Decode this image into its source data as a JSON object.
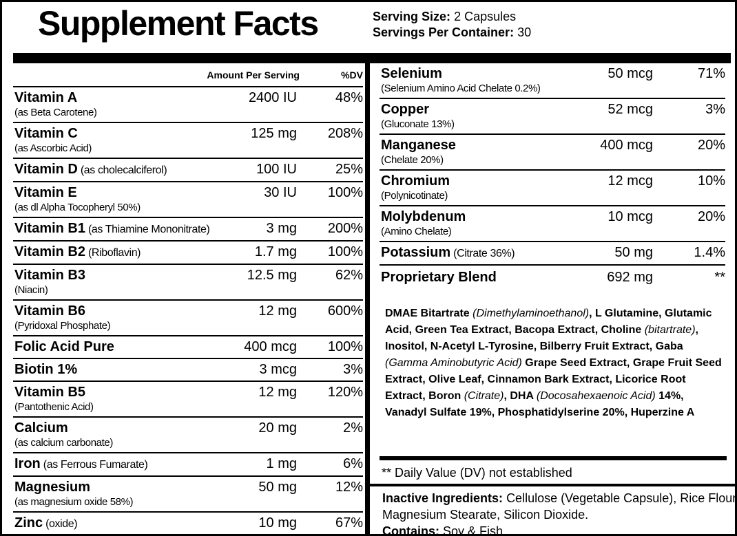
{
  "header": {
    "title": "Supplement Facts",
    "serving_size_label": "Serving Size:",
    "serving_size": "2 Capsules",
    "servings_label": "Servings Per Container:",
    "servings": "30"
  },
  "left_table": {
    "amount_header": "Amount Per Serving",
    "dv_header": "%DV",
    "rows": [
      {
        "name": "Vitamin A",
        "note": "(as Beta Carotene)",
        "amount": "2400 IU",
        "dv": "48%"
      },
      {
        "name": "Vitamin C",
        "note": "(as Ascorbic Acid)",
        "amount": "125 mg",
        "dv": "208%"
      },
      {
        "name": "Vitamin D",
        "inline_note": "(as cholecalciferol)",
        "amount": "100 IU",
        "dv": "25%"
      },
      {
        "name": "Vitamin E",
        "note": "(as dl Alpha Tocopheryl 50%)",
        "amount": "30 IU",
        "dv": "100%"
      },
      {
        "name": "Vitamin B1",
        "inline_note": "(as Thiamine Mononitrate)",
        "amount": "3 mg",
        "dv": "200%"
      },
      {
        "name": "Vitamin B2",
        "inline_note": "(Riboflavin)",
        "amount": "1.7 mg",
        "dv": "100%"
      },
      {
        "name": "Vitamin B3",
        "note": "(Niacin)",
        "amount": "12.5 mg",
        "dv": "62%"
      },
      {
        "name": "Vitamin B6",
        "note": "(Pyridoxal Phosphate)",
        "amount": "12 mg",
        "dv": "600%"
      },
      {
        "name": "Folic Acid Pure",
        "amount": "400 mcg",
        "dv": "100%"
      },
      {
        "name": "Biotin 1%",
        "amount": "3 mcg",
        "dv": "3%"
      },
      {
        "name": "Vitamin B5",
        "note": "(Pantothenic Acid)",
        "amount": "12 mg",
        "dv": "120%"
      },
      {
        "name": "Calcium",
        "note": "(as calcium carbonate)",
        "amount": "20 mg",
        "dv": "2%"
      },
      {
        "name": "Iron",
        "inline_note": "(as Ferrous Fumarate)",
        "amount": "1 mg",
        "dv": "6%"
      },
      {
        "name": "Magnesium",
        "note": "(as magnesium oxide 58%)",
        "amount": "50 mg",
        "dv": "12%"
      },
      {
        "name": "Zinc",
        "inline_note": "(oxide)",
        "amount": "10 mg",
        "dv": "67%"
      }
    ]
  },
  "right_table": {
    "rows": [
      {
        "name": "Selenium",
        "note": "(Selenium Amino Acid Chelate 0.2%)",
        "amount": "50 mcg",
        "dv": "71%"
      },
      {
        "name": "Copper",
        "note": "(Gluconate 13%)",
        "amount": "52 mcg",
        "dv": "3%"
      },
      {
        "name": "Manganese",
        "note": "(Chelate 20%)",
        "amount": "400 mcg",
        "dv": "20%"
      },
      {
        "name": "Chromium",
        "note": "(Polynicotinate)",
        "amount": "12 mcg",
        "dv": "10%"
      },
      {
        "name": "Molybdenum",
        "note": "(Amino Chelate)",
        "amount": "10 mcg",
        "dv": "20%"
      },
      {
        "name": "Potassium",
        "inline_note": "(Citrate 36%)",
        "amount": "50 mg",
        "dv": "1.4%"
      },
      {
        "name": "Proprietary Blend",
        "amount": "692 mg",
        "dv": "**"
      }
    ],
    "blend": [
      {
        "text": "DMAE Bitartrate "
      },
      {
        "text": "(Dimethylaminoethanol)",
        "italic": true
      },
      {
        "text": ", L Glutamine, Glutamic Acid, Green Tea Extract, Bacopa Extract, Choline "
      },
      {
        "text": "(bitartrate)",
        "italic": true
      },
      {
        "text": ", Inositol, N-Acetyl L-Tyrosine, Bilberry Fruit Extract, Gaba "
      },
      {
        "text": "(Gamma Aminobutyric Acid)",
        "italic": true
      },
      {
        "text": " Grape Seed Extract, Grape Fruit Seed Extract, Olive Leaf, Cinnamon Bark Extract, Licorice Root Extract, Boron "
      },
      {
        "text": "(Citrate)",
        "italic": true
      },
      {
        "text": ", DHA "
      },
      {
        "text": "(Docosahexaenoic Acid)",
        "italic": true
      },
      {
        "text": " 14%, Vanadyl Sulfate 19%, Phosphatidylserine 20%, Huperzine A"
      }
    ],
    "footnote": "** Daily Value (DV) not established"
  },
  "inactive": {
    "label": "Inactive Ingredients:",
    "text": "Cellulose (Vegetable Capsule), Rice Flour, Magnesium Stearate, Silicon Dioxide.",
    "contains_label": "Contains:",
    "contains": "Soy & Fish"
  }
}
